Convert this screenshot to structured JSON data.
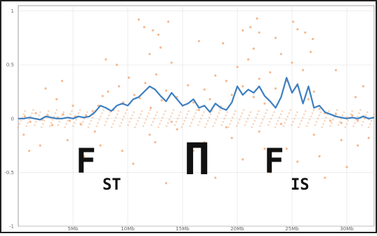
{
  "chart_data": {
    "type": "scatter",
    "xlabel": "",
    "ylabel": "",
    "xlim": [
      0,
      32.5
    ],
    "ylim": [
      -1,
      1.05
    ],
    "x_ticks": [
      {
        "value": 5,
        "label": "5Mb"
      },
      {
        "value": 10,
        "label": "10Mb"
      },
      {
        "value": 15,
        "label": "15Mb"
      },
      {
        "value": 20,
        "label": "20Mb"
      },
      {
        "value": 25,
        "label": "25Mb"
      },
      {
        "value": 30,
        "label": "30Mb"
      }
    ],
    "y_ticks": [
      {
        "value": 1,
        "label": "1"
      },
      {
        "value": 0.5,
        "label": "0.5"
      },
      {
        "value": 0,
        "label": "0"
      },
      {
        "value": -0.5,
        "label": "-0.5"
      },
      {
        "value": -1,
        "label": "-1"
      }
    ],
    "series": [
      {
        "kind": "scatter",
        "color": "#f2a16a",
        "points": [
          [
            0.6,
            0.02
          ],
          [
            1.1,
            -0.03
          ],
          [
            1.6,
            0.05
          ],
          [
            2.2,
            -0.01
          ],
          [
            2.7,
            0.03
          ],
          [
            3.1,
            -0.06
          ],
          [
            3.6,
            0.01
          ],
          [
            4.1,
            0.04
          ],
          [
            4.7,
            -0.02
          ],
          [
            5.2,
            0.02
          ],
          [
            5.7,
            -0.05
          ],
          [
            6.2,
            0.03
          ],
          [
            6.8,
            0.07
          ],
          [
            7.3,
            0.12
          ],
          [
            7.7,
            0.21
          ],
          [
            8.2,
            0.25
          ],
          [
            8.7,
            0.08
          ],
          [
            9.2,
            0.3
          ],
          [
            9.6,
            0.15
          ],
          [
            10.1,
            0.38
          ],
          [
            10.6,
            0.22
          ],
          [
            11.1,
            0.19
          ],
          [
            11.6,
            0.33
          ],
          [
            12.1,
            0.1
          ],
          [
            12.6,
            0.41
          ],
          [
            13.1,
            0.17
          ],
          [
            13.5,
            0.26
          ],
          [
            14.0,
            0.52
          ],
          [
            14.5,
            0.2
          ],
          [
            15.0,
            0.12
          ],
          [
            15.5,
            0.31
          ],
          [
            16.0,
            0.15
          ],
          [
            16.5,
            0.08
          ],
          [
            17.0,
            0.27
          ],
          [
            17.5,
            0.18
          ],
          [
            18.0,
            0.4
          ],
          [
            18.5,
            0.11
          ],
          [
            19.0,
            0.35
          ],
          [
            19.5,
            0.22
          ],
          [
            20.0,
            0.48
          ],
          [
            20.5,
            0.3
          ],
          [
            21.0,
            0.55
          ],
          [
            21.5,
            0.2
          ],
          [
            22.0,
            0.37
          ],
          [
            22.5,
            0.14
          ],
          [
            23.0,
            0.43
          ],
          [
            23.5,
            0.28
          ],
          [
            24.0,
            0.6
          ],
          [
            24.5,
            0.35
          ],
          [
            25.0,
            0.52
          ],
          [
            25.5,
            0.3
          ],
          [
            26.0,
            0.45
          ],
          [
            26.5,
            0.18
          ],
          [
            27.0,
            0.25
          ],
          [
            27.5,
            0.09
          ],
          [
            28.0,
            0.05
          ],
          [
            28.5,
            -0.02
          ],
          [
            29.0,
            0.04
          ],
          [
            29.5,
            -0.04
          ],
          [
            30.0,
            0.01
          ],
          [
            30.5,
            0.03
          ],
          [
            31.0,
            -0.02
          ],
          [
            31.5,
            0.02
          ],
          [
            32.0,
            0.0
          ],
          [
            2.0,
            -0.25
          ],
          [
            4.5,
            -0.2
          ],
          [
            7.0,
            -0.12
          ],
          [
            9.5,
            -0.3
          ],
          [
            12.0,
            -0.15
          ],
          [
            14.5,
            -0.1
          ],
          [
            17.0,
            -0.22
          ],
          [
            19.5,
            -0.18
          ],
          [
            22.0,
            -0.12
          ],
          [
            24.5,
            -0.28
          ],
          [
            27.0,
            -0.15
          ],
          [
            29.5,
            -0.2
          ],
          [
            31.0,
            -0.25
          ],
          [
            11.5,
            0.85
          ],
          [
            12.3,
            0.82
          ],
          [
            12.8,
            0.78
          ],
          [
            20.5,
            0.82
          ],
          [
            21.2,
            0.85
          ],
          [
            22.0,
            0.8
          ],
          [
            25.5,
            0.83
          ],
          [
            26.2,
            0.8
          ],
          [
            18.7,
            0.7
          ],
          [
            23.5,
            0.75
          ],
          [
            12.0,
            0.6
          ],
          [
            13.0,
            0.66
          ],
          [
            21.5,
            0.65
          ],
          [
            26.7,
            0.62
          ],
          [
            8.0,
            0.55
          ],
          [
            29.0,
            0.45
          ],
          [
            4.0,
            0.35
          ],
          [
            2.5,
            0.28
          ],
          [
            31.5,
            0.3
          ],
          [
            6.0,
            -0.35
          ],
          [
            10.5,
            -0.42
          ],
          [
            15.5,
            -0.45
          ],
          [
            20.5,
            -0.38
          ],
          [
            25.5,
            -0.4
          ],
          [
            30.0,
            -0.45
          ],
          [
            1.0,
            -0.3
          ],
          [
            18.0,
            -0.55
          ],
          [
            23.0,
            -0.5
          ],
          [
            13.5,
            -0.6
          ],
          [
            28.0,
            -0.55
          ],
          [
            11.0,
            0.92
          ],
          [
            13.7,
            0.9
          ],
          [
            21.8,
            0.93
          ],
          [
            25.1,
            0.9
          ],
          [
            16.5,
            0.72
          ],
          [
            26.9,
            0.74
          ],
          [
            9.0,
            0.5
          ],
          [
            3.5,
            0.18
          ],
          [
            5.0,
            0.12
          ],
          [
            30.8,
            0.2
          ],
          [
            0.5,
            -0.15
          ],
          [
            32.0,
            -0.18
          ],
          [
            7.5,
            -0.25
          ],
          [
            16.0,
            -0.3
          ],
          [
            27.5,
            -0.35
          ],
          [
            22.5,
            -0.28
          ],
          [
            12.5,
            -0.22
          ],
          [
            19.0,
            -0.08
          ],
          [
            24.0,
            -0.05
          ],
          [
            14.0,
            -0.03
          ]
        ]
      },
      {
        "kind": "line",
        "color": "#3d7fc1",
        "points": [
          [
            0,
            0.0
          ],
          [
            0.5,
            0.0
          ],
          [
            1,
            0.01
          ],
          [
            1.5,
            0.0
          ],
          [
            2,
            -0.01
          ],
          [
            2.5,
            0.02
          ],
          [
            3,
            0.01
          ],
          [
            3.5,
            0.0
          ],
          [
            4,
            0.0
          ],
          [
            4.5,
            0.01
          ],
          [
            5,
            0.0
          ],
          [
            5.5,
            0.02
          ],
          [
            6,
            0.01
          ],
          [
            6.5,
            0.02
          ],
          [
            7,
            0.06
          ],
          [
            7.5,
            0.12
          ],
          [
            8,
            0.1
          ],
          [
            8.5,
            0.07
          ],
          [
            9,
            0.12
          ],
          [
            9.5,
            0.14
          ],
          [
            10,
            0.12
          ],
          [
            10.5,
            0.18
          ],
          [
            11,
            0.2
          ],
          [
            11.5,
            0.25
          ],
          [
            12,
            0.3
          ],
          [
            12.5,
            0.27
          ],
          [
            13,
            0.21
          ],
          [
            13.5,
            0.16
          ],
          [
            14,
            0.24
          ],
          [
            14.5,
            0.18
          ],
          [
            15,
            0.12
          ],
          [
            15.5,
            0.14
          ],
          [
            16,
            0.18
          ],
          [
            16.5,
            0.1
          ],
          [
            17,
            0.12
          ],
          [
            17.5,
            0.06
          ],
          [
            18,
            0.14
          ],
          [
            18.5,
            0.1
          ],
          [
            19,
            0.08
          ],
          [
            19.5,
            0.15
          ],
          [
            20,
            0.3
          ],
          [
            20.5,
            0.22
          ],
          [
            21,
            0.27
          ],
          [
            21.5,
            0.24
          ],
          [
            22,
            0.3
          ],
          [
            22.5,
            0.21
          ],
          [
            23,
            0.16
          ],
          [
            23.5,
            0.1
          ],
          [
            24,
            0.2
          ],
          [
            24.5,
            0.38
          ],
          [
            25,
            0.24
          ],
          [
            25.5,
            0.32
          ],
          [
            26,
            0.14
          ],
          [
            26.5,
            0.3
          ],
          [
            27,
            0.1
          ],
          [
            27.5,
            0.12
          ],
          [
            28,
            0.06
          ],
          [
            28.5,
            0.04
          ],
          [
            29,
            0.02
          ],
          [
            29.5,
            0.01
          ],
          [
            30,
            0.0
          ],
          [
            30.5,
            0.01
          ],
          [
            31,
            0.0
          ],
          [
            31.5,
            0.02
          ],
          [
            32,
            0.0
          ],
          [
            32.5,
            0.01
          ]
        ]
      }
    ],
    "annotation": {
      "left": {
        "main": "F",
        "sub": "ST"
      },
      "symbol": "Π",
      "right": {
        "main": "F",
        "sub": "IS"
      }
    }
  }
}
